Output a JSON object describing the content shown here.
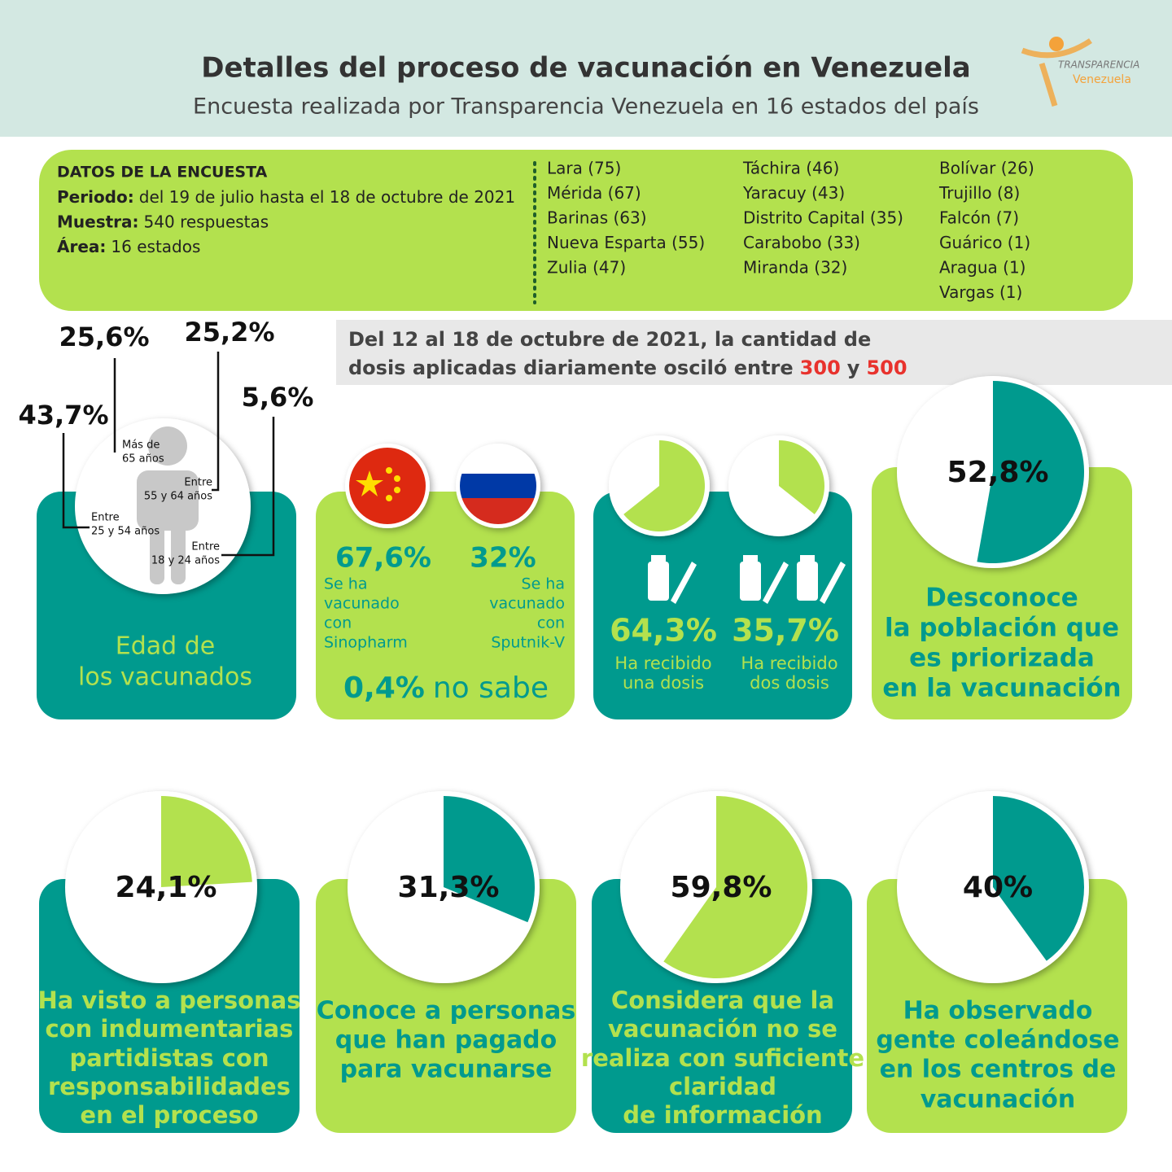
{
  "header": {
    "title": "Detalles del proceso de vacunación en Venezuela",
    "subtitle": "Encuesta realizada por Transparencia Venezuela en 16 estados del país",
    "logo_top": "TRANSPARENCIA",
    "logo_bottom": "Venezuela"
  },
  "survey": {
    "heading": "DATOS DE LA ENCUESTA",
    "rows": [
      [
        "Periodo:",
        "del 19 de julio hasta el 18 de octubre de 2021"
      ],
      [
        "Muestra:",
        "540 respuestas"
      ],
      [
        "Área:",
        "16 estados"
      ]
    ],
    "states": [
      [
        "Lara (75)",
        "Mérida (67)",
        "Barinas (63)",
        "Nueva Esparta (55)",
        "Zulia (47)"
      ],
      [
        "Táchira (46)",
        "Yaracuy (43)",
        "Distrito Capital (35)",
        "Carabobo (33)",
        "Miranda (32)"
      ],
      [
        "Bolívar (26)",
        "Trujillo (8)",
        "Falcón (7)",
        "Guárico (1)",
        "Aragua (1)",
        "Vargas (1)"
      ]
    ]
  },
  "banner": {
    "line1": "Del 12 al 18 de octubre de 2021, la cantidad de",
    "line2": "dosis aplicadas diariamente osciló entre",
    "low": "300",
    "and": "y",
    "high": "500"
  },
  "ages": {
    "title": [
      "Edad de",
      "los vacunados"
    ],
    "groups": [
      {
        "share": "43,7%",
        "label": [
          "Entre",
          "25 y 54 años"
        ]
      },
      {
        "share": "25,6%",
        "label": [
          "Más de",
          "65 años"
        ]
      },
      {
        "share": "25,2%",
        "label": [
          "Entre",
          "55 y 64 años"
        ]
      },
      {
        "share": "5,6%",
        "label": [
          "Entre",
          "18 y 24 años"
        ]
      }
    ]
  },
  "vaccines": {
    "brands": [
      {
        "share": "67,6%",
        "text": [
          "Se ha",
          "vacunado",
          "con",
          "Sinopharm"
        ]
      },
      {
        "share": "32%",
        "text": [
          "Se ha",
          "vacunado",
          "con",
          "Sputnik-V"
        ]
      }
    ],
    "unknown_share": "0,4%",
    "unknown_text": "no sabe"
  },
  "doses": [
    {
      "value": 64.3,
      "label": "64,3%",
      "text": [
        "Ha recibido",
        "una dosis"
      ]
    },
    {
      "value": 35.7,
      "label": "35,7%",
      "text": [
        "Ha recibido",
        "dos dosis"
      ]
    }
  ],
  "cards": [
    {
      "value": 52.8,
      "label": "52,8%",
      "text": [
        "Desconoce",
        "la población que",
        "es priorizada",
        "en la vacunación"
      ]
    },
    {
      "value": 24.1,
      "label": "24,1%",
      "text": [
        "Ha visto a personas",
        "con indumentarias",
        "partidistas con",
        "responsabilidades",
        "en el proceso"
      ]
    },
    {
      "value": 31.3,
      "label": "31,3%",
      "text": [
        "Conoce a personas",
        "que han pagado",
        "para vacunarse"
      ]
    },
    {
      "value": 59.8,
      "label": "59,8%",
      "text": [
        "Considera que la",
        "vacunación no se",
        "realiza con suficiente",
        "claridad",
        "de información"
      ]
    },
    {
      "value": 40,
      "label": "40%",
      "text": [
        "Ha observado",
        "gente coleándose",
        "en los centros de",
        "vacunación"
      ]
    }
  ]
}
